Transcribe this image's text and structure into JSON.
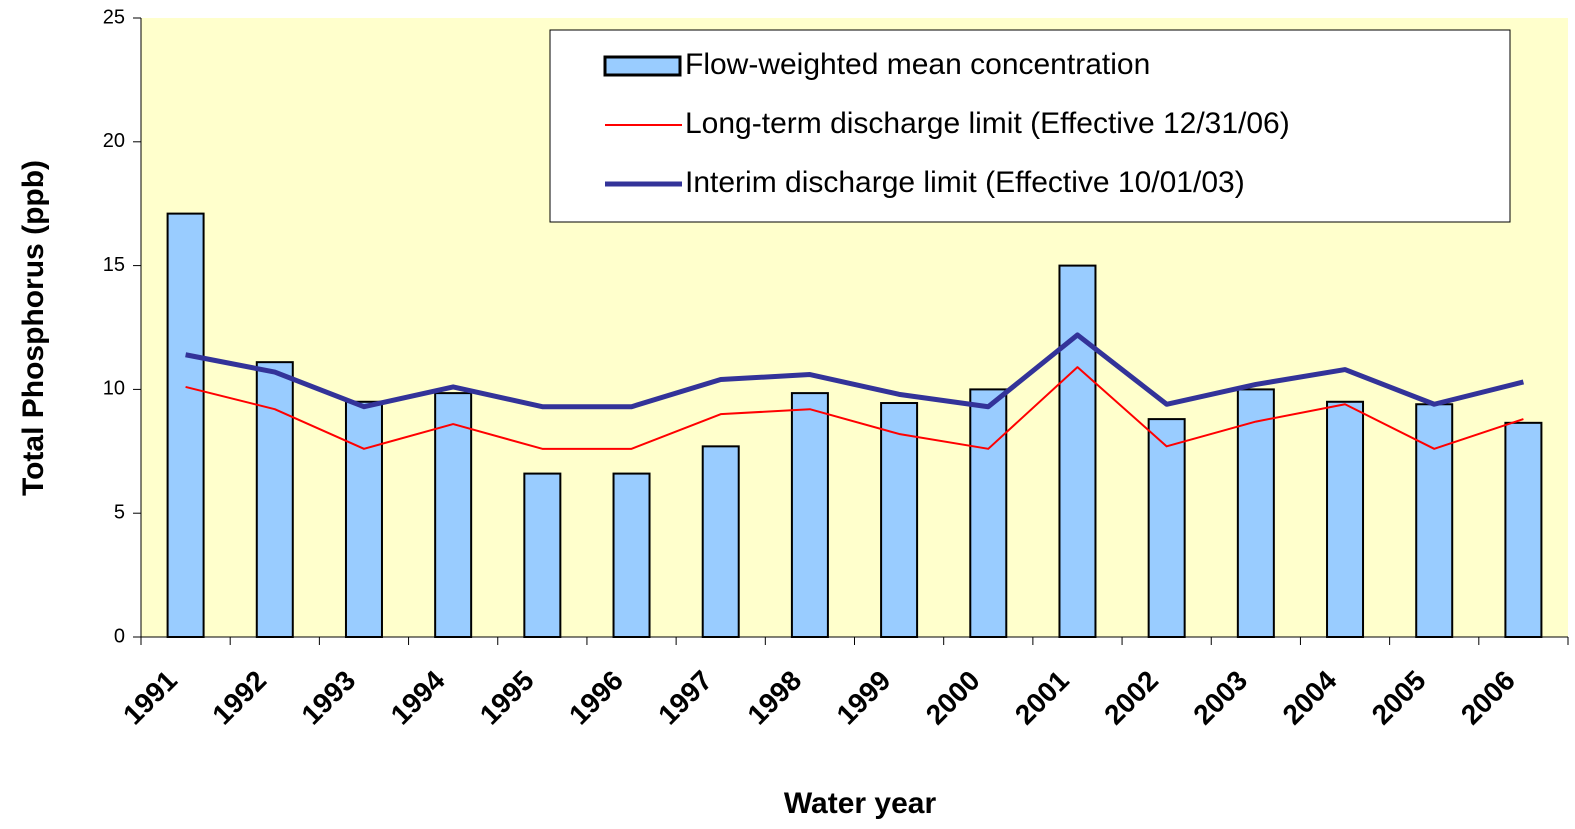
{
  "chart_data": {
    "type": "bar_line",
    "x_label": "Water year",
    "y_label": "Total Phosphorus (ppb)",
    "categories": [
      "1991",
      "1992",
      "1993",
      "1994",
      "1995",
      "1996",
      "1997",
      "1998",
      "1999",
      "2000",
      "2001",
      "2002",
      "2003",
      "2004",
      "2005",
      "2006"
    ],
    "series": [
      {
        "name": "Flow-weighted mean concentration",
        "type": "bar",
        "color": "#99ccff",
        "values": [
          17.1,
          11.1,
          9.5,
          9.85,
          6.6,
          6.6,
          7.7,
          9.85,
          9.45,
          10.0,
          15.0,
          8.8,
          10.0,
          9.5,
          9.4,
          8.65
        ]
      },
      {
        "name": "Long-term discharge limit (Effective 12/31/06)",
        "type": "line",
        "color": "#ff0000",
        "width": 2,
        "values": [
          10.1,
          9.2,
          7.6,
          8.6,
          7.6,
          7.6,
          9.0,
          9.2,
          8.2,
          7.6,
          10.9,
          7.7,
          8.7,
          9.4,
          7.6,
          8.8
        ]
      },
      {
        "name": "Interim discharge limit (Effective 10/01/03)",
        "type": "line",
        "color": "#333399",
        "width": 5,
        "values": [
          11.4,
          10.7,
          9.3,
          10.1,
          9.3,
          9.3,
          10.4,
          10.6,
          9.8,
          9.3,
          12.2,
          9.4,
          10.2,
          10.8,
          9.4,
          10.3
        ]
      }
    ],
    "ylim": [
      0,
      25
    ],
    "yticks": [
      0,
      5,
      10,
      15,
      20,
      25
    ],
    "grid": false,
    "legend": "upper right",
    "plot_background": "#ffffcc"
  }
}
